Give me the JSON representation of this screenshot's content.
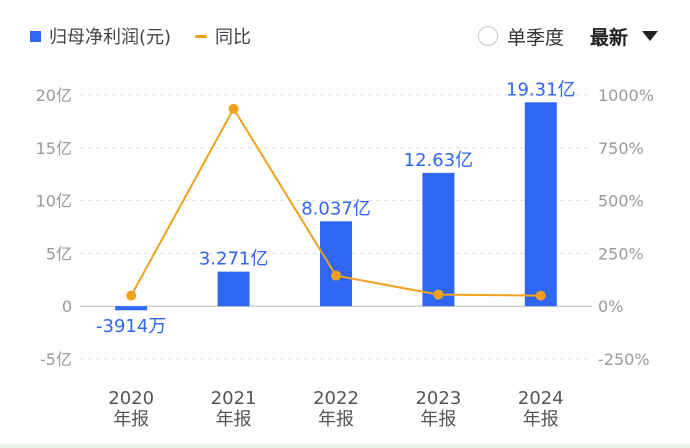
{
  "legend": {
    "profit_label": "归母净利润(元)",
    "yoy_label": "同比"
  },
  "controls": {
    "quarter_label": "单季度",
    "latest_label": "最新"
  },
  "colors": {
    "bar": "#2f66f2",
    "line": "#f0a21f",
    "label": "#2f66f2",
    "axis": "#999999",
    "grid": "#dddddd"
  },
  "chart_data": {
    "type": "bar",
    "categories": [
      "2020\n年报",
      "2021\n年报",
      "2022\n年报",
      "2023\n年报",
      "2024\n年报"
    ],
    "series": [
      {
        "name": "归母净利润(元)",
        "type": "bar",
        "axis": "left",
        "values": [
          -0.3914,
          3.271,
          8.037,
          12.63,
          19.31
        ],
        "labels": [
          "-3914万",
          "3.271亿",
          "8.037亿",
          "12.63亿",
          "19.31亿"
        ]
      },
      {
        "name": "同比",
        "type": "line",
        "axis": "right",
        "values": [
          50,
          935,
          145,
          55,
          50
        ]
      }
    ],
    "y_left": {
      "ylim": [
        -5,
        20
      ],
      "ticks": [
        20,
        15,
        10,
        5,
        0,
        -5
      ],
      "tick_labels": [
        "20亿",
        "15亿",
        "10亿",
        "5亿",
        "0",
        "-5亿"
      ]
    },
    "y_right": {
      "ylim": [
        -250,
        1000
      ],
      "ticks": [
        1000,
        750,
        500,
        250,
        0,
        -250
      ],
      "tick_labels": [
        "1000%",
        "750%",
        "500%",
        "250%",
        "0%",
        "-250%"
      ]
    },
    "grid": true,
    "legend_position": "top-left"
  }
}
